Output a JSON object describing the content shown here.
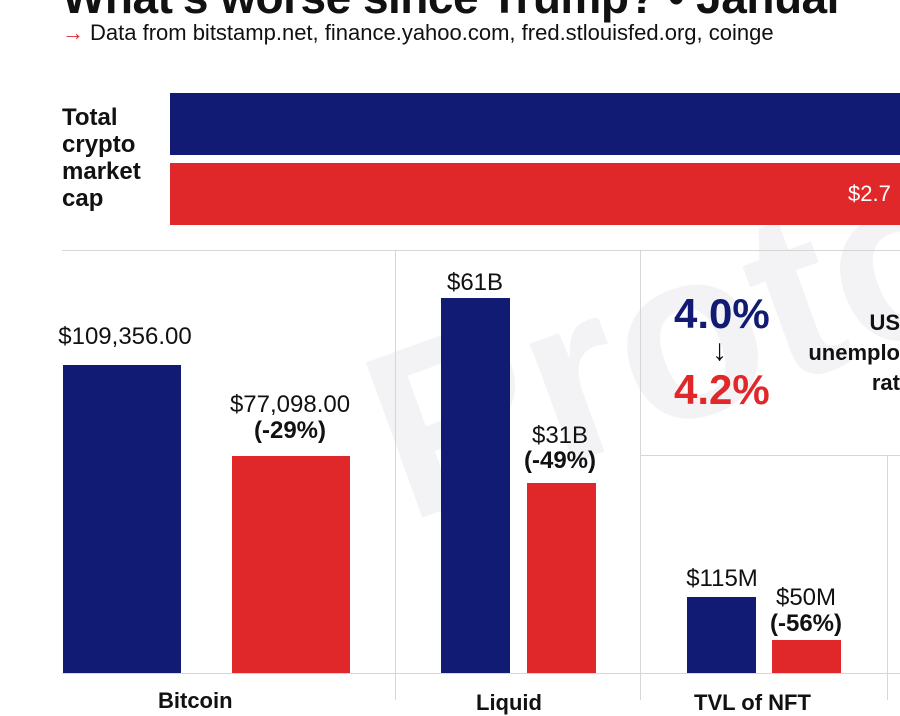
{
  "header": {
    "title": "What's worse since Trump? • Januar",
    "subtitle": "Data from bitstamp.net, finance.yahoo.com, fred.stlouisfed.org, coinge",
    "subtitle_arrow": "→"
  },
  "watermark": "Proto",
  "colors": {
    "before": "#111b74",
    "after": "#e0282b"
  },
  "chart_data": [
    {
      "type": "bar",
      "title": "Total crypto market cap",
      "series": [
        {
          "value_label": ""
        },
        {
          "value_label": "$2.7"
        }
      ]
    },
    {
      "type": "bar",
      "title": "",
      "ylim": [
        0,
        120000
      ],
      "values": [
        109356.0,
        77098.0
      ],
      "labels": [
        "$109,356.00",
        "$77,098.00"
      ],
      "change": [
        "",
        "(-29%)"
      ],
      "bottom_label": "Bitcoin"
    },
    {
      "type": "bar",
      "title": "",
      "ylim": [
        0,
        70
      ],
      "values": [
        61,
        31
      ],
      "labels": [
        "$61B",
        "$31B"
      ],
      "change": [
        "",
        "(-49%)"
      ],
      "bottom_label": "Liquid"
    },
    {
      "type": "table",
      "title": "US unemployment rate",
      "title_lines": [
        "US",
        "unemplo",
        "rat"
      ],
      "from": "4.0%",
      "to": "4.2%",
      "arrow": "↓"
    },
    {
      "type": "bar",
      "title": "",
      "ylim": [
        0,
        250
      ],
      "values": [
        115,
        50
      ],
      "labels": [
        "$115M",
        "$50M"
      ],
      "change": [
        "",
        "(-56%)"
      ],
      "bottom_label": "TVL of NFT"
    }
  ]
}
